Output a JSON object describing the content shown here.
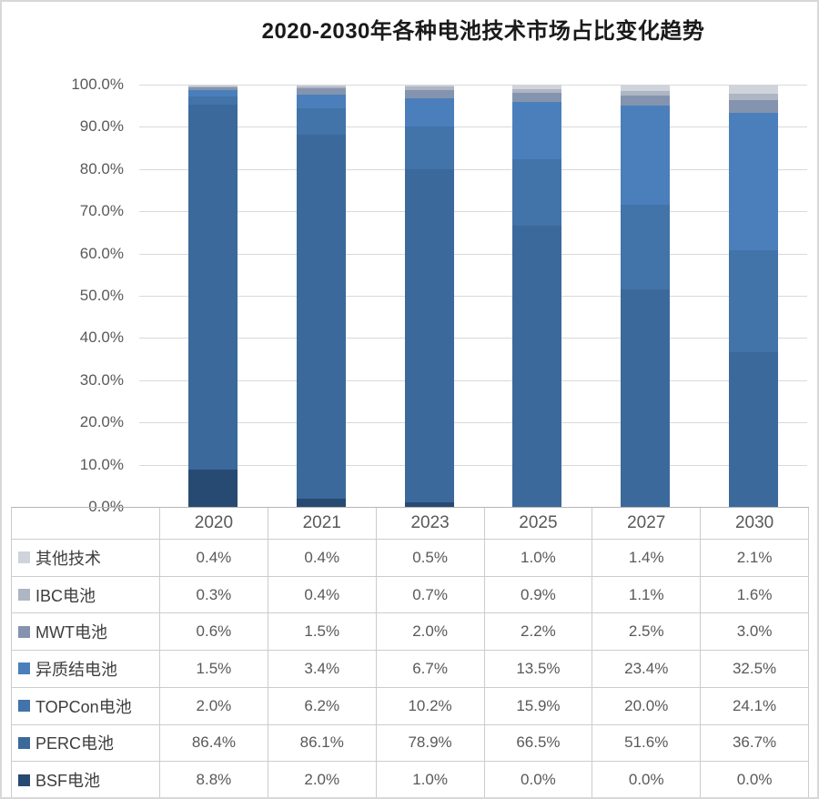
{
  "title": "2020-2030年各种电池技术市场占比变化趋势",
  "chart_data": {
    "type": "bar",
    "stacked": true,
    "title": "2020-2030年各种电池技术市场占比变化趋势",
    "categories": [
      "2020",
      "2021",
      "2023",
      "2025",
      "2027",
      "2030"
    ],
    "series": [
      {
        "name": "其他技术",
        "color": "#cfd3da",
        "values": [
          0.4,
          0.4,
          0.5,
          1.0,
          1.4,
          2.1
        ]
      },
      {
        "name": "IBC电池",
        "color": "#aeb5c3",
        "values": [
          0.3,
          0.4,
          0.7,
          0.9,
          1.1,
          1.6
        ]
      },
      {
        "name": "MWT电池",
        "color": "#8494ae",
        "values": [
          0.6,
          1.5,
          2.0,
          2.2,
          2.5,
          3.0
        ]
      },
      {
        "name": "异质结电池",
        "color": "#4b7fbb",
        "values": [
          1.5,
          3.4,
          6.7,
          13.5,
          23.4,
          32.5
        ]
      },
      {
        "name": "TOPCon电池",
        "color": "#4273a9",
        "values": [
          2.0,
          6.2,
          10.2,
          15.9,
          20.0,
          24.1
        ]
      },
      {
        "name": "PERC电池",
        "color": "#3c699c",
        "values": [
          86.4,
          86.1,
          78.9,
          66.5,
          51.6,
          36.7
        ]
      },
      {
        "name": "BSF电池",
        "color": "#264a72",
        "values": [
          8.8,
          2.0,
          1.0,
          0.0,
          0.0,
          0.0
        ]
      }
    ],
    "stack_order": "bottom-to-top: BSF电池, PERC电池, TOPCon电池, 异质结电池, MWT电池, IBC电池, 其他技术",
    "y_ticks": [
      "100.0%",
      "90.0%",
      "80.0%",
      "70.0%",
      "60.0%",
      "50.0%",
      "40.0%",
      "30.0%",
      "20.0%",
      "10.0%",
      "0.0%"
    ],
    "ylim": [
      0,
      100
    ],
    "grid": true,
    "legend_position": "table-rows-below-chart"
  },
  "table": {
    "header": [
      "",
      "2020",
      "2021",
      "2023",
      "2025",
      "2027",
      "2030"
    ],
    "rows": [
      {
        "label": "其他技术",
        "swatch": "#cfd3da",
        "values": [
          "0.4%",
          "0.4%",
          "0.5%",
          "1.0%",
          "1.4%",
          "2.1%"
        ]
      },
      {
        "label": "IBC电池",
        "swatch": "#aeb5c3",
        "values": [
          "0.3%",
          "0.4%",
          "0.7%",
          "0.9%",
          "1.1%",
          "1.6%"
        ]
      },
      {
        "label": "MWT电池",
        "swatch": "#8494ae",
        "values": [
          "0.6%",
          "1.5%",
          "2.0%",
          "2.2%",
          "2.5%",
          "3.0%"
        ]
      },
      {
        "label": "异质结电池",
        "swatch": "#4b7fbb",
        "values": [
          "1.5%",
          "3.4%",
          "6.7%",
          "13.5%",
          "23.4%",
          "32.5%"
        ]
      },
      {
        "label": "TOPCon电池",
        "swatch": "#4273a9",
        "values": [
          "2.0%",
          "6.2%",
          "10.2%",
          "15.9%",
          "20.0%",
          "24.1%"
        ]
      },
      {
        "label": "PERC电池",
        "swatch": "#3c699c",
        "values": [
          "86.4%",
          "86.1%",
          "78.9%",
          "66.5%",
          "51.6%",
          "36.7%"
        ]
      },
      {
        "label": "BSF电池",
        "swatch": "#264a72",
        "values": [
          "8.8%",
          "2.0%",
          "1.0%",
          "0.0%",
          "0.0%",
          "0.0%"
        ]
      }
    ]
  },
  "colors": {
    "gridline": "#d9d9d9",
    "axis_line": "#bdbdbd",
    "tick_text": "#595959",
    "table_border": "#cccccc"
  }
}
